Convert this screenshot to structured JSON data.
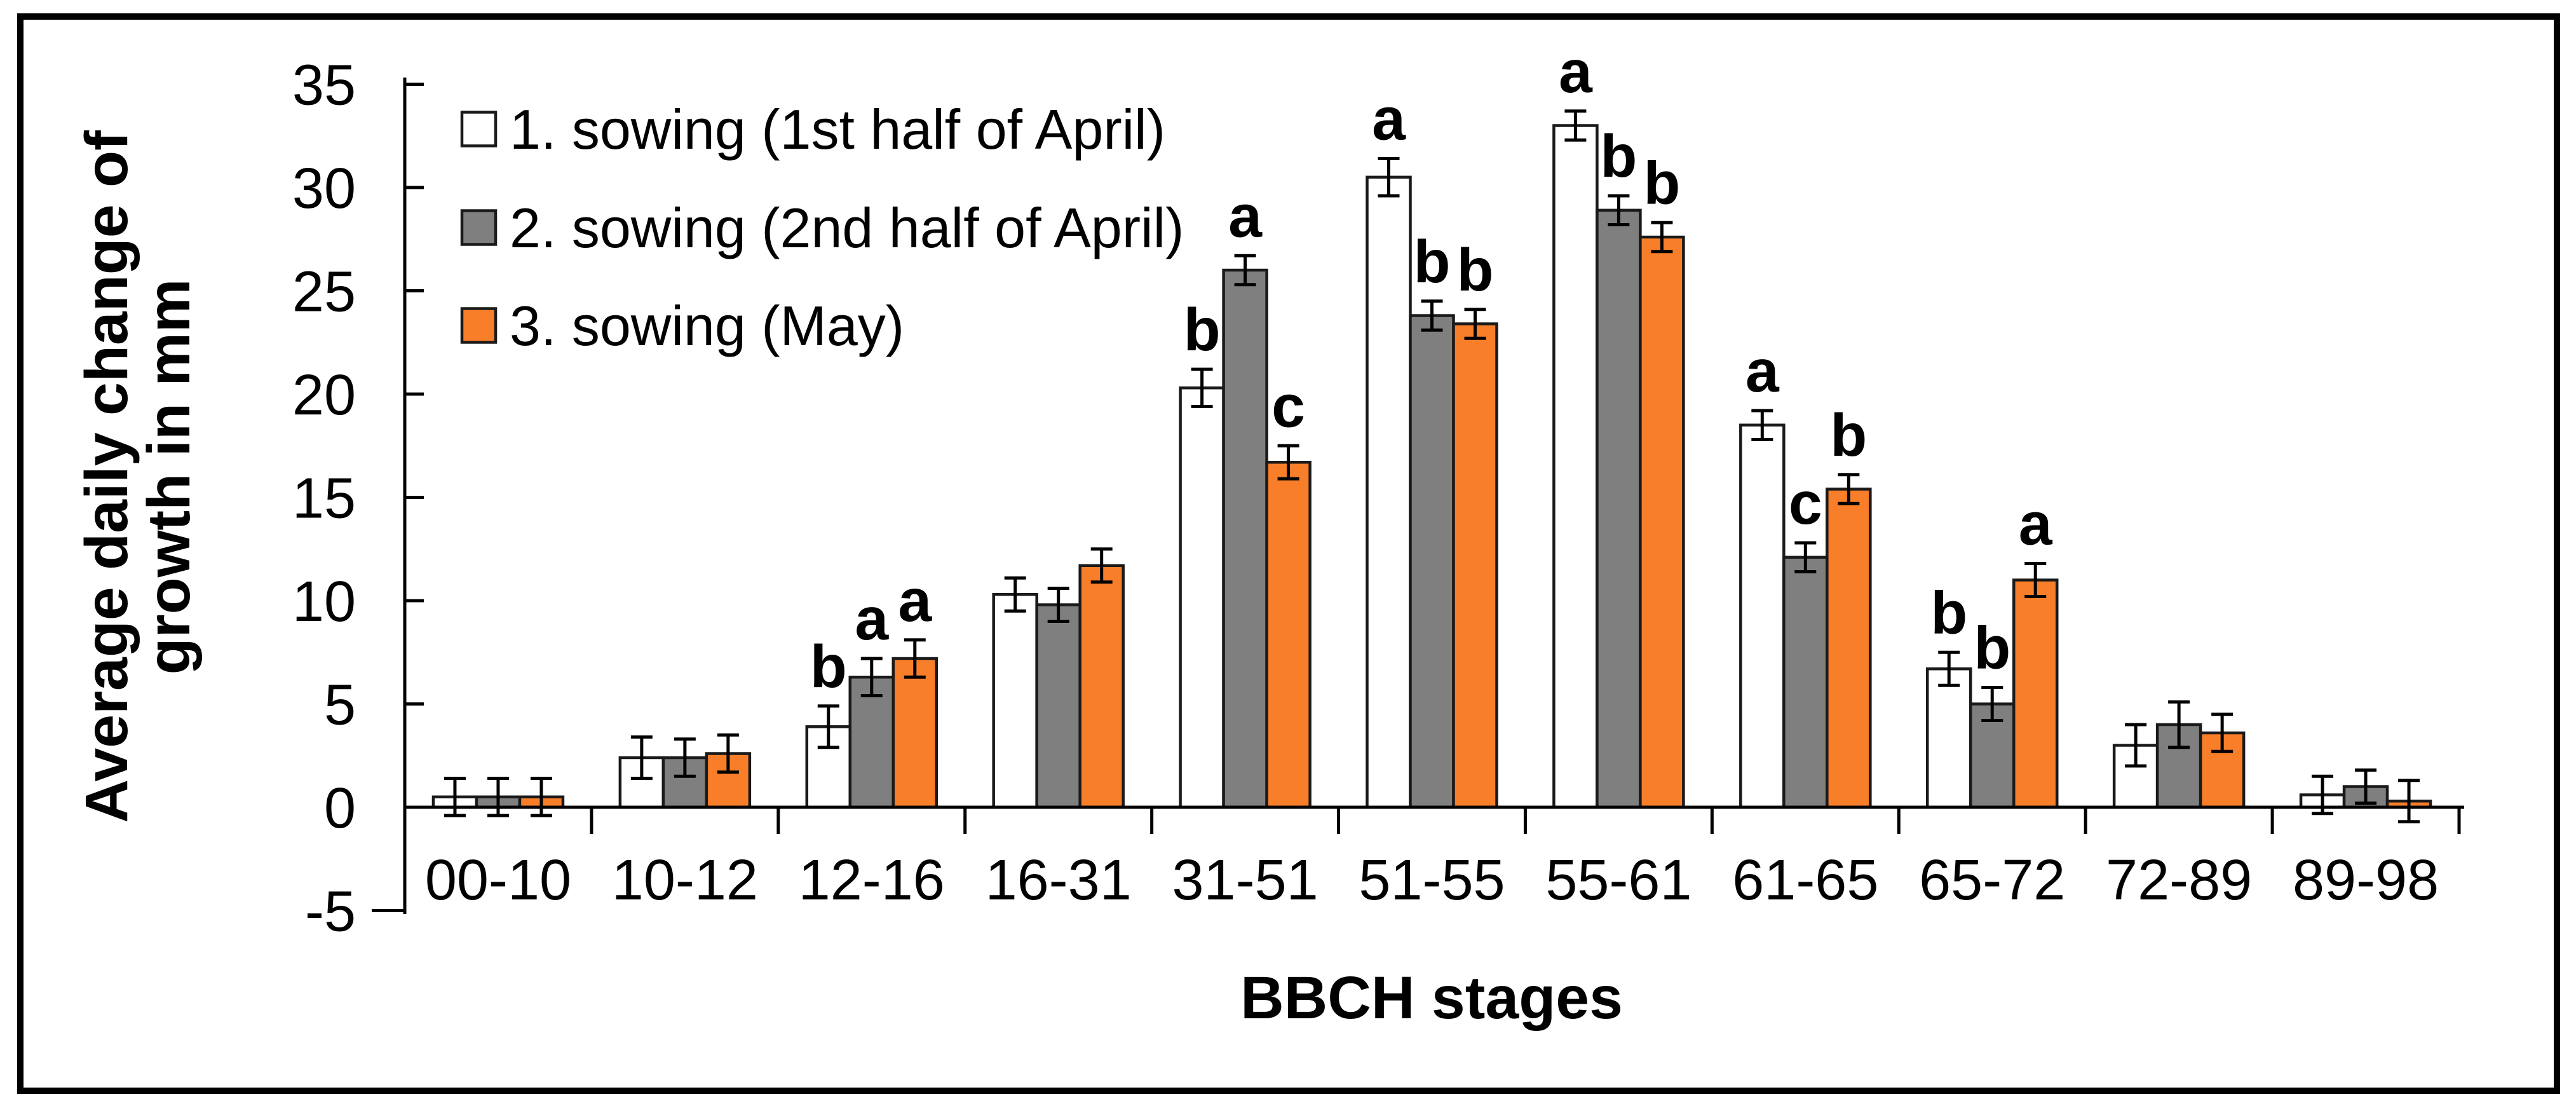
{
  "figure": {
    "background": "#ffffff",
    "frame_color": "#000000"
  },
  "chart_data": {
    "type": "bar",
    "title": "",
    "xlabel": "BBCH stages",
    "ylabel_line1": "Average daily change of",
    "ylabel_line2": "growth in mm",
    "ylim": [
      -5,
      35
    ],
    "ytick_step": 5,
    "yticks": [
      -5,
      0,
      5,
      10,
      15,
      20,
      25,
      30,
      35
    ],
    "grid": false,
    "legend_position": "inside-top-left",
    "error_bars": true,
    "categories": [
      "00-10",
      "10-12",
      "12-16",
      "16-31",
      "31-51",
      "51-55",
      "55-61",
      "61-65",
      "65-72",
      "72-89",
      "89-98"
    ],
    "series": [
      {
        "name": "1. sowing (1st half of April)",
        "color": "#ffffff",
        "border_color": "#1a1a1a",
        "values": [
          0.5,
          2.4,
          3.9,
          10.3,
          20.3,
          30.5,
          33.0,
          18.5,
          6.7,
          3.0,
          0.6
        ],
        "errors": [
          0.9,
          1.0,
          1.0,
          0.8,
          0.9,
          0.9,
          0.7,
          0.7,
          0.8,
          1.0,
          0.9
        ],
        "letters": [
          "",
          "",
          "b",
          "",
          "b",
          "a",
          "a",
          "a",
          "b",
          "",
          ""
        ]
      },
      {
        "name": "2. sowing (2nd half of April)",
        "color": "#7f7f7f",
        "border_color": "#1a1a1a",
        "values": [
          0.5,
          2.4,
          6.3,
          9.8,
          26.0,
          23.8,
          28.9,
          12.1,
          5.0,
          4.0,
          1.0
        ],
        "errors": [
          0.9,
          0.9,
          0.9,
          0.8,
          0.7,
          0.7,
          0.7,
          0.7,
          0.8,
          1.1,
          0.8
        ],
        "letters": [
          "",
          "",
          "a",
          "",
          "a",
          "b",
          "b",
          "c",
          "b",
          "",
          ""
        ]
      },
      {
        "name": "3. sowing (May)",
        "color": "#f87e2a",
        "border_color": "#1a1a1a",
        "values": [
          0.5,
          2.6,
          7.2,
          11.7,
          16.7,
          23.4,
          27.6,
          15.4,
          11.0,
          3.6,
          0.3
        ],
        "errors": [
          0.9,
          0.9,
          0.9,
          0.8,
          0.8,
          0.7,
          0.7,
          0.7,
          0.8,
          0.9,
          1.0
        ],
        "letters": [
          "",
          "",
          "a",
          "",
          "c",
          "b",
          "b",
          "b",
          "a",
          "",
          ""
        ]
      }
    ]
  }
}
